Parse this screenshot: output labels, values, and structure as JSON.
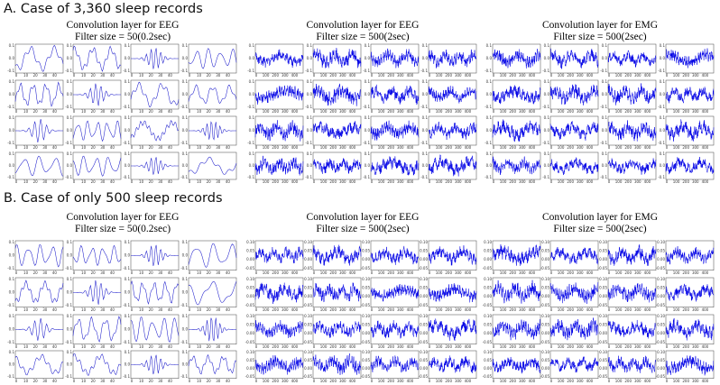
{
  "figure": {
    "sections": [
      {
        "heading": "A. Case of 3,360 sleep records",
        "groups": [
          {
            "title_line1": "Convolution layer for EEG",
            "title_line2": "Filter size = 50(0.2sec)",
            "filter_length": 50,
            "style": "thin",
            "x_ticks": [
              "0",
              "10",
              "20",
              "30",
              "40"
            ],
            "y_ticks": [
              "0.1",
              "0.0",
              "-0.1"
            ]
          },
          {
            "title_line1": "Convolution layer for EEG",
            "title_line2": "Filter size = 500(2sec)",
            "filter_length": 500,
            "style": "dense",
            "x_ticks": [
              "0",
              "100",
              "200",
              "300",
              "400"
            ],
            "y_ticks": [
              "0.1",
              "0.0",
              "-0.1"
            ]
          },
          {
            "title_line1": "Convolution layer for EMG",
            "title_line2": "Filter size = 500(2sec)",
            "filter_length": 500,
            "style": "dense",
            "x_ticks": [
              "0",
              "100",
              "200",
              "300",
              "400"
            ],
            "y_ticks": [
              "0.1",
              "0.0",
              "-0.1"
            ]
          }
        ]
      },
      {
        "heading": "B. Case of only 500 sleep records",
        "groups": [
          {
            "title_line1": "Convolution layer for EEG",
            "title_line2": "Filter size = 50(0.2sec)",
            "filter_length": 50,
            "style": "thin",
            "x_ticks": [
              "0",
              "10",
              "20",
              "30",
              "40"
            ],
            "y_ticks": [
              "0.1",
              "0.0",
              "-0.1"
            ]
          },
          {
            "title_line1": "Convolution layer for EEG",
            "title_line2": "Filter size = 500(2sec)",
            "filter_length": 500,
            "style": "dense",
            "x_ticks": [
              "0",
              "100",
              "200",
              "300",
              "400"
            ],
            "y_ticks": [
              "0.10",
              "0.05",
              "0.00",
              "-0.05"
            ]
          },
          {
            "title_line1": "Convolution layer for EMG",
            "title_line2": "Filter size = 500(2sec)",
            "filter_length": 500,
            "style": "dense",
            "x_ticks": [
              "0",
              "100",
              "200",
              "300",
              "400"
            ],
            "y_ticks": [
              "0.10",
              "0.05",
              "0.00",
              "-0.05"
            ]
          }
        ]
      }
    ],
    "colors": {
      "line": "#1f1fcc",
      "line_dense": "#0000e6",
      "frame": "#444444",
      "background": "#ffffff"
    }
  },
  "chart_data": {
    "type": "line",
    "layout": "6 groups of 4x4 small-multiple line plots, each plot shows one learned convolution filter waveform",
    "grid": false,
    "legend": "none",
    "xlim": [
      [
        0,
        50
      ],
      [
        0,
        500
      ],
      [
        0,
        500
      ],
      [
        0,
        50
      ],
      [
        0,
        500
      ],
      [
        0,
        500
      ]
    ],
    "ylim": [
      -0.15,
      0.15
    ]
  }
}
